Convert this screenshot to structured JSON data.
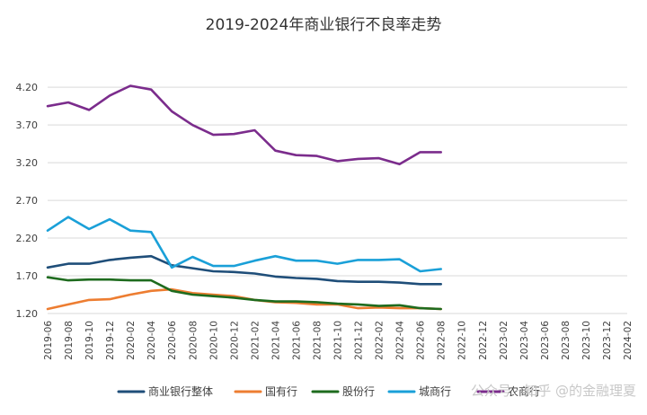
{
  "chart_data": {
    "type": "line",
    "title": "2019-2024年商业银行不良率走势",
    "xlabel": "",
    "ylabel": "",
    "ylim": [
      1.2,
      4.5
    ],
    "yticks": [
      "1.20",
      "1.70",
      "2.20",
      "2.70",
      "3.20",
      "3.70",
      "4.20"
    ],
    "grid": true,
    "legend_position": "bottom",
    "x": [
      "2019-06",
      "2019-08",
      "2019-10",
      "2019-12",
      "2020-02",
      "2020-04",
      "2020-06",
      "2020-08",
      "2020-10",
      "2020-12",
      "2021-02",
      "2021-04",
      "2021-06",
      "2021-08",
      "2021-10",
      "2021-12",
      "2022-02",
      "2022-04",
      "2022-06",
      "2022-08",
      "2022-10",
      "2022-12",
      "2023-02",
      "2023-04",
      "2023-06",
      "2023-08",
      "2023-10",
      "2023-12",
      "2024-02"
    ],
    "series": [
      {
        "name": "商业银行整体",
        "color": "#1f4e79",
        "points": [
          [
            0,
            1.81
          ],
          [
            1,
            1.86
          ],
          [
            2,
            1.86
          ],
          [
            3,
            1.91
          ],
          [
            4,
            1.94
          ],
          [
            5,
            1.96
          ],
          [
            6,
            1.84
          ],
          [
            7,
            1.8
          ],
          [
            8,
            1.76
          ],
          [
            9,
            1.75
          ],
          [
            10,
            1.73
          ],
          [
            11,
            1.69
          ],
          [
            12,
            1.67
          ],
          [
            13,
            1.66
          ],
          [
            14,
            1.63
          ],
          [
            15,
            1.62
          ],
          [
            16,
            1.62
          ],
          [
            17,
            1.61
          ],
          [
            18,
            1.59
          ],
          [
            19,
            1.59
          ]
        ]
      },
      {
        "name": "国有行",
        "color": "#ed7d31",
        "points": [
          [
            0,
            1.26
          ],
          [
            1,
            1.32
          ],
          [
            2,
            1.38
          ],
          [
            3,
            1.39
          ],
          [
            4,
            1.45
          ],
          [
            5,
            1.5
          ],
          [
            6,
            1.52
          ],
          [
            7,
            1.47
          ],
          [
            8,
            1.45
          ],
          [
            9,
            1.43
          ],
          [
            10,
            1.38
          ],
          [
            11,
            1.35
          ],
          [
            12,
            1.34
          ],
          [
            13,
            1.32
          ],
          [
            14,
            1.32
          ],
          [
            15,
            1.27
          ],
          [
            16,
            1.28
          ],
          [
            17,
            1.27
          ],
          [
            18,
            1.27
          ],
          [
            19,
            1.26
          ]
        ]
      },
      {
        "name": "股份行",
        "color": "#1e6b1e",
        "points": [
          [
            0,
            1.68
          ],
          [
            1,
            1.64
          ],
          [
            2,
            1.65
          ],
          [
            3,
            1.65
          ],
          [
            4,
            1.64
          ],
          [
            5,
            1.64
          ],
          [
            6,
            1.5
          ],
          [
            7,
            1.45
          ],
          [
            8,
            1.43
          ],
          [
            9,
            1.41
          ],
          [
            10,
            1.38
          ],
          [
            11,
            1.36
          ],
          [
            12,
            1.36
          ],
          [
            13,
            1.35
          ],
          [
            14,
            1.33
          ],
          [
            15,
            1.32
          ],
          [
            16,
            1.3
          ],
          [
            17,
            1.31
          ],
          [
            18,
            1.27
          ],
          [
            19,
            1.26
          ]
        ]
      },
      {
        "name": "城商行",
        "color": "#1aa0d8",
        "points": [
          [
            0,
            2.3
          ],
          [
            1,
            2.48
          ],
          [
            2,
            2.32
          ],
          [
            3,
            2.45
          ],
          [
            4,
            2.3
          ],
          [
            5,
            2.28
          ],
          [
            6,
            1.81
          ],
          [
            7,
            1.95
          ],
          [
            8,
            1.83
          ],
          [
            9,
            1.83
          ],
          [
            10,
            1.9
          ],
          [
            11,
            1.96
          ],
          [
            12,
            1.9
          ],
          [
            13,
            1.9
          ],
          [
            14,
            1.86
          ],
          [
            15,
            1.91
          ],
          [
            16,
            1.91
          ],
          [
            17,
            1.92
          ],
          [
            18,
            1.76
          ],
          [
            19,
            1.79
          ]
        ]
      },
      {
        "name": "农商行",
        "color": "#7b2c8c",
        "points": [
          [
            0,
            3.95
          ],
          [
            1,
            4.0
          ],
          [
            2,
            3.9
          ],
          [
            3,
            4.09
          ],
          [
            4,
            4.22
          ],
          [
            5,
            4.17
          ],
          [
            6,
            3.88
          ],
          [
            7,
            3.7
          ],
          [
            8,
            3.57
          ],
          [
            9,
            3.58
          ],
          [
            10,
            3.63
          ],
          [
            11,
            3.36
          ],
          [
            12,
            3.3
          ],
          [
            13,
            3.29
          ],
          [
            14,
            3.22
          ],
          [
            15,
            3.25
          ],
          [
            16,
            3.26
          ],
          [
            17,
            3.18
          ],
          [
            18,
            3.34
          ],
          [
            19,
            3.34
          ]
        ]
      }
    ]
  },
  "watermark": "公众号 · 知乎 @的金融理夏"
}
